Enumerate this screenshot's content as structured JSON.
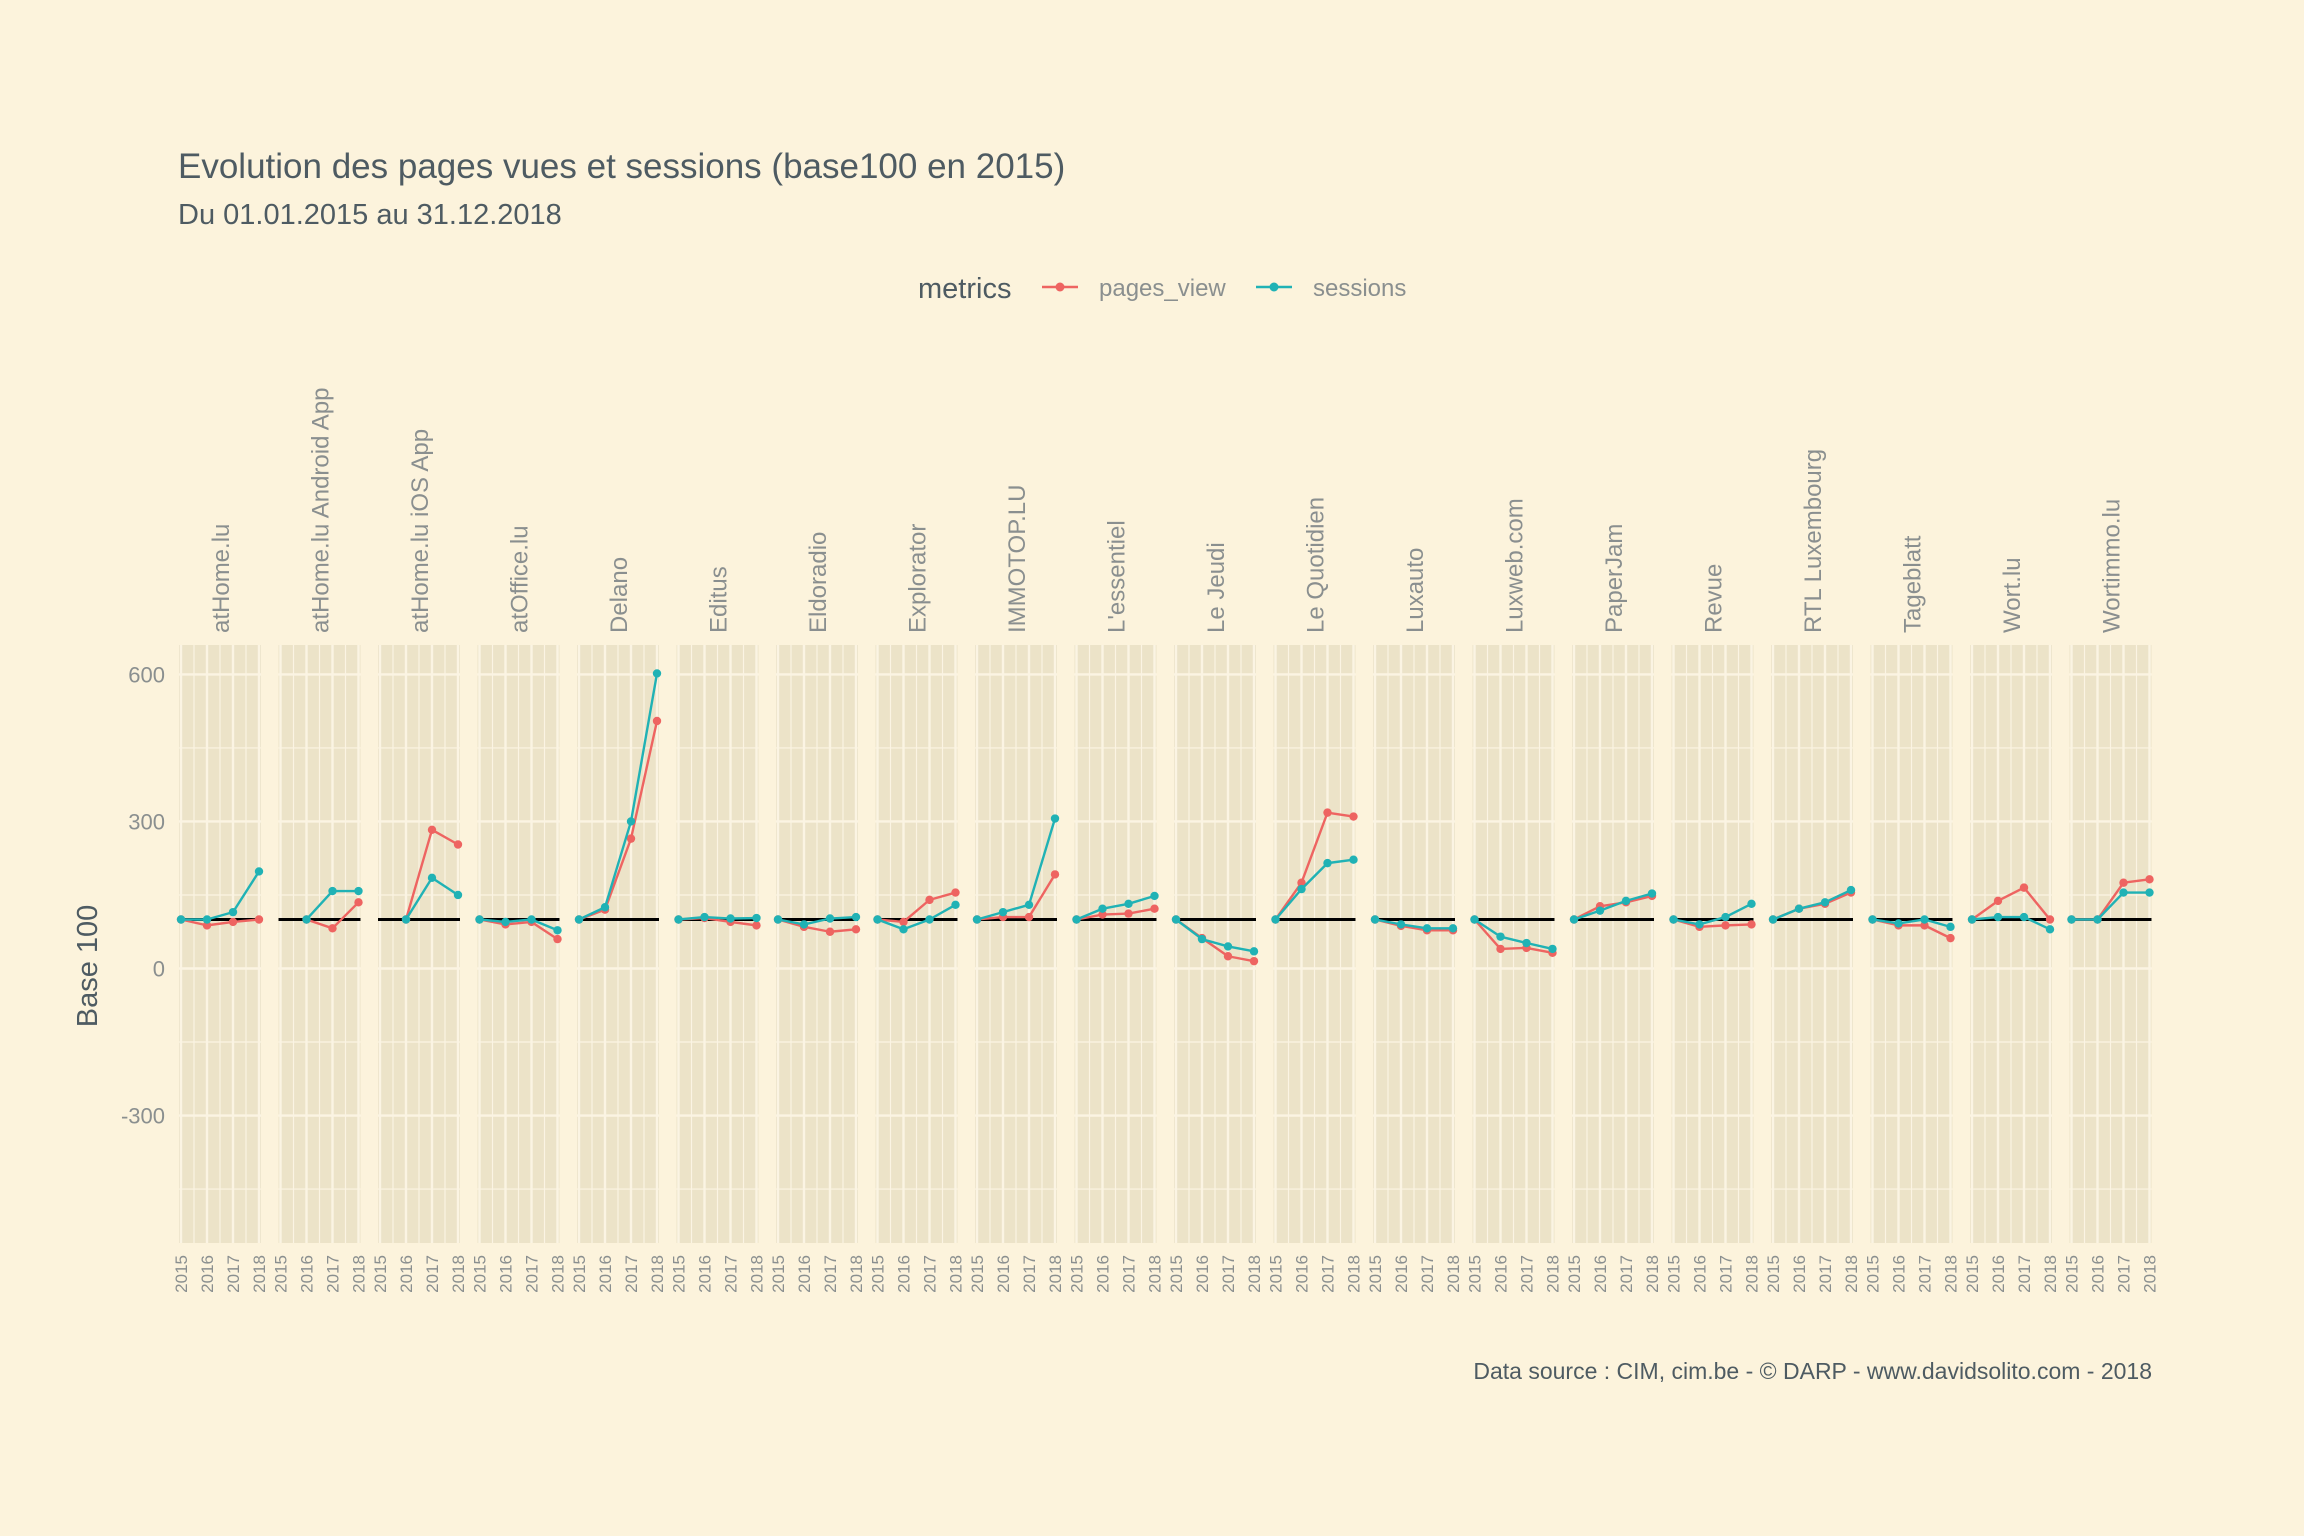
{
  "chart_data": {
    "type": "line",
    "title": "Evolution des pages vues et sessions (base100 en 2015)",
    "subtitle": "Du 01.01.2015 au 31.12.2018",
    "ylabel": "Base 100",
    "caption": "Data source : CIM, cim.be - © DARP - www.davidsolito.com - 2018",
    "legend": {
      "title": "metrics",
      "position": "top"
    },
    "x": [
      "2015",
      "2016",
      "2017",
      "2018"
    ],
    "ylim": [
      -560,
      660
    ],
    "yticks": [
      -300,
      0,
      300,
      600
    ],
    "reference_line": 100,
    "grid": true,
    "colors": {
      "pages_view": "#ee6461",
      "sessions": "#20b2b5",
      "panel_bg": "#ece3c8",
      "grid": "#fbf4e3",
      "reference": "#000000"
    },
    "series_names": [
      "pages_view",
      "sessions"
    ],
    "facets": [
      {
        "name": "atHome.lu",
        "pages_view": [
          100,
          88,
          95,
          100
        ],
        "sessions": [
          100,
          100,
          115,
          198
        ]
      },
      {
        "name": "atHome.lu Android App",
        "pages_view": [
          null,
          100,
          82,
          135
        ],
        "sessions": [
          null,
          100,
          158,
          158
        ]
      },
      {
        "name": "atHome.lu iOS App",
        "pages_view": [
          null,
          100,
          283,
          253
        ],
        "sessions": [
          null,
          100,
          185,
          150
        ]
      },
      {
        "name": "atOffice.lu",
        "pages_view": [
          100,
          90,
          95,
          60
        ],
        "sessions": [
          100,
          95,
          100,
          78
        ]
      },
      {
        "name": "Delano",
        "pages_view": [
          100,
          120,
          265,
          505
        ],
        "sessions": [
          100,
          125,
          300,
          602
        ]
      },
      {
        "name": "Editus",
        "pages_view": [
          100,
          103,
          95,
          88
        ],
        "sessions": [
          100,
          105,
          102,
          103
        ]
      },
      {
        "name": "Eldoradio",
        "pages_view": [
          100,
          85,
          75,
          80
        ],
        "sessions": [
          100,
          90,
          102,
          105
        ]
      },
      {
        "name": "Explorator",
        "pages_view": [
          100,
          95,
          140,
          155
        ],
        "sessions": [
          100,
          80,
          100,
          130
        ]
      },
      {
        "name": "IMMOTOP.LU",
        "pages_view": [
          100,
          105,
          105,
          192
        ],
        "sessions": [
          100,
          115,
          130,
          306
        ]
      },
      {
        "name": "L'essentiel",
        "pages_view": [
          100,
          110,
          112,
          122
        ],
        "sessions": [
          100,
          122,
          132,
          148
        ]
      },
      {
        "name": "Le Jeudi",
        "pages_view": [
          100,
          62,
          25,
          15
        ],
        "sessions": [
          100,
          60,
          45,
          35
        ]
      },
      {
        "name": "Le Quotidien",
        "pages_view": [
          100,
          175,
          318,
          310
        ],
        "sessions": [
          100,
          162,
          215,
          222
        ]
      },
      {
        "name": "Luxauto",
        "pages_view": [
          100,
          87,
          78,
          78
        ],
        "sessions": [
          100,
          90,
          82,
          82
        ]
      },
      {
        "name": "Luxweb.com",
        "pages_view": [
          100,
          40,
          42,
          32
        ],
        "sessions": [
          100,
          65,
          52,
          40
        ]
      },
      {
        "name": "PaperJam",
        "pages_view": [
          100,
          127,
          135,
          148
        ],
        "sessions": [
          100,
          118,
          138,
          153
        ]
      },
      {
        "name": "Revue",
        "pages_view": [
          100,
          85,
          88,
          90
        ],
        "sessions": [
          100,
          90,
          105,
          132
        ]
      },
      {
        "name": "RTL Luxembourg",
        "pages_view": [
          100,
          122,
          132,
          155
        ],
        "sessions": [
          100,
          122,
          135,
          160
        ]
      },
      {
        "name": "Tageblatt",
        "pages_view": [
          100,
          88,
          88,
          62
        ],
        "sessions": [
          100,
          92,
          100,
          85
        ]
      },
      {
        "name": "Wort.lu",
        "pages_view": [
          100,
          138,
          165,
          100
        ],
        "sessions": [
          100,
          105,
          105,
          80
        ]
      },
      {
        "name": "Wortimmo.lu",
        "pages_view": [
          100,
          100,
          175,
          182
        ],
        "sessions": [
          100,
          100,
          155,
          155
        ]
      }
    ]
  }
}
